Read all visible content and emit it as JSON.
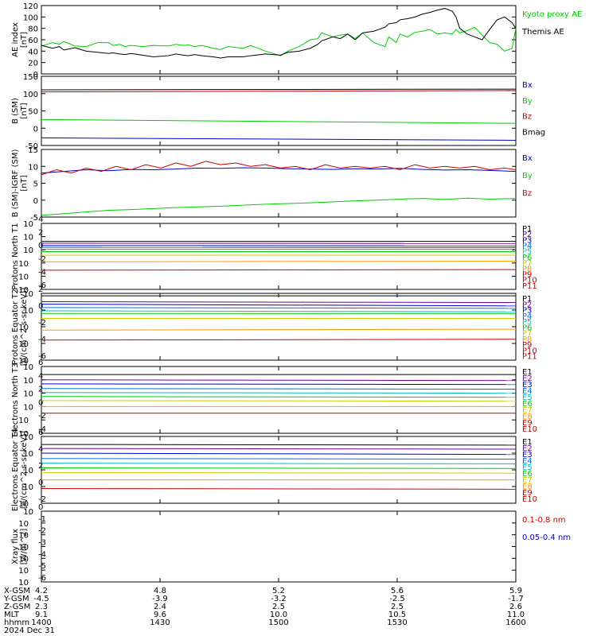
{
  "chart_data": [
    {
      "type": "line",
      "ylabel": "AE index",
      "yunit": "[nT]",
      "ylim": [
        0,
        120
      ],
      "yticks": [
        "0",
        "20",
        "40",
        "60",
        "80",
        "100",
        "120"
      ],
      "series": [
        {
          "name": "Kyoto proxy AE",
          "color": "#00cc00",
          "x": [
            0,
            15,
            24,
            30,
            45,
            60,
            75,
            90,
            96,
            105,
            112,
            120,
            135,
            150,
            170,
            180,
            190,
            197,
            205,
            215,
            230,
            240,
            250,
            270,
            280,
            300,
            320,
            330,
            345,
            360,
            370,
            375,
            390,
            400,
            410,
            420,
            430,
            445,
            460,
            465,
            475,
            480,
            490,
            500,
            510,
            520,
            530,
            540,
            550,
            555,
            560,
            570,
            580,
            590,
            600,
            610,
            620,
            630,
            635
          ],
          "y": [
            49,
            55,
            52,
            57,
            49,
            48,
            55,
            55,
            50,
            52,
            48,
            50,
            48,
            50,
            49,
            52,
            50,
            51,
            48,
            50,
            45,
            43,
            48,
            45,
            50,
            40,
            32,
            40,
            48,
            60,
            62,
            72,
            65,
            68,
            70,
            62,
            72,
            55,
            48,
            65,
            55,
            70,
            65,
            73,
            75,
            78,
            70,
            72,
            70,
            78,
            72,
            76,
            82,
            68,
            55,
            52,
            40,
            45,
            80
          ]
        },
        {
          "name": "Themis AE",
          "color": "#000000",
          "x": [
            0,
            15,
            24,
            30,
            45,
            60,
            75,
            90,
            96,
            105,
            112,
            120,
            135,
            150,
            170,
            180,
            190,
            197,
            205,
            215,
            230,
            240,
            250,
            270,
            280,
            300,
            320,
            330,
            345,
            360,
            370,
            375,
            390,
            400,
            410,
            420,
            430,
            445,
            460,
            465,
            475,
            480,
            490,
            500,
            510,
            520,
            530,
            540,
            550,
            555,
            560,
            570,
            580,
            590,
            600,
            610,
            620,
            630,
            635
          ],
          "y": [
            50,
            45,
            48,
            42,
            46,
            40,
            38,
            36,
            37,
            35,
            34,
            36,
            33,
            30,
            32,
            35,
            33,
            32,
            34,
            32,
            30,
            28,
            30,
            30,
            32,
            35,
            33,
            38,
            40,
            45,
            52,
            58,
            65,
            62,
            70,
            60,
            72,
            75,
            82,
            88,
            90,
            95,
            97,
            100,
            105,
            108,
            112,
            115,
            110,
            100,
            80,
            70,
            65,
            60,
            78,
            95,
            100,
            90,
            80
          ]
        }
      ]
    },
    {
      "type": "line",
      "ylabel": "B (SM)",
      "yunit": "[nT]",
      "ylim": [
        -50,
        150
      ],
      "yticks": [
        "-50",
        "0",
        "50",
        "100",
        "150"
      ],
      "series": [
        {
          "name": "Bx",
          "color": "#0000cc",
          "x": [
            0,
            635
          ],
          "y": [
            -28,
            -35
          ]
        },
        {
          "name": "By",
          "color": "#00cc00",
          "x": [
            0,
            635
          ],
          "y": [
            25,
            14
          ]
        },
        {
          "name": "Bz",
          "color": "#cc0000",
          "x": [
            0,
            635
          ],
          "y": [
            105,
            109
          ]
        },
        {
          "name": "Bmag",
          "color": "#000000",
          "x": [
            0,
            635
          ],
          "y": [
            111,
            113
          ]
        }
      ]
    },
    {
      "type": "line",
      "ylabel": "B (SM)-IGRF (SM)",
      "yunit": "[nT]",
      "ylim": [
        -5,
        15
      ],
      "yticks": [
        "-5",
        "0",
        "5",
        "10",
        "15"
      ],
      "series": [
        {
          "name": "Bx",
          "color": "#0000cc",
          "x": [
            0,
            30,
            60,
            90,
            120,
            150,
            180,
            210,
            240,
            270,
            300,
            330,
            360,
            390,
            420,
            450,
            480,
            510,
            540,
            570,
            600,
            635
          ],
          "y": [
            8,
            8.5,
            9,
            8.7,
            9.1,
            9,
            9.2,
            9.5,
            9.4,
            9.6,
            9.5,
            9.3,
            9.2,
            9.1,
            9.3,
            9.2,
            9.4,
            9.1,
            8.9,
            9,
            8.8,
            8.5
          ]
        },
        {
          "name": "By",
          "color": "#00cc00",
          "x": [
            0,
            30,
            60,
            90,
            120,
            150,
            180,
            210,
            240,
            270,
            300,
            330,
            360,
            390,
            420,
            450,
            480,
            510,
            540,
            570,
            600,
            635
          ],
          "y": [
            -4.5,
            -4,
            -3.5,
            -3,
            -2.8,
            -2.5,
            -2.2,
            -2,
            -1.8,
            -1.5,
            -1.2,
            -1,
            -0.8,
            -0.5,
            -0.2,
            0,
            0.3,
            0.5,
            0.2,
            0.6,
            0.3,
            0.5
          ]
        },
        {
          "name": "Bz",
          "color": "#cc0000",
          "x": [
            0,
            20,
            40,
            60,
            80,
            100,
            120,
            140,
            160,
            180,
            200,
            220,
            240,
            260,
            280,
            300,
            320,
            340,
            360,
            380,
            400,
            420,
            440,
            460,
            480,
            500,
            520,
            540,
            560,
            580,
            600,
            620,
            635
          ],
          "y": [
            7.5,
            9,
            8,
            9.5,
            8.5,
            10,
            9,
            10.5,
            9.5,
            11,
            10,
            11.5,
            10.5,
            11,
            10,
            10.5,
            9.5,
            10,
            9,
            10.5,
            9.5,
            10,
            9.5,
            10,
            9,
            10.5,
            9.5,
            10,
            9.5,
            10,
            9,
            9.5,
            9
          ]
        }
      ]
    },
    {
      "type": "line",
      "ylabel": "Protons North T1",
      "yticks": [
        "10^-6",
        "10^-4",
        "10^-2",
        "10^0",
        "10^2",
        "10^4"
      ],
      "ylim_log": [
        -7,
        4
      ],
      "series": [
        {
          "name": "P1",
          "color": "#000000",
          "level": [
            1.0,
            1.0
          ]
        },
        {
          "name": "P2",
          "color": "#7000a0",
          "level": [
            0.7,
            0.65
          ]
        },
        {
          "name": "P3",
          "color": "#0000cc",
          "level": [
            0.3,
            0.25
          ]
        },
        {
          "name": "P4",
          "color": "#0070dd",
          "level": [
            0.0,
            -0.05
          ]
        },
        {
          "name": "P5",
          "color": "#00bbcc",
          "level": [
            -0.3,
            -0.3
          ]
        },
        {
          "name": "P6",
          "color": "#00cc00",
          "level": [
            -0.7,
            -0.7
          ]
        },
        {
          "name": "P7",
          "color": "#cccc00",
          "level": [
            -1.3,
            -1.3
          ]
        },
        {
          "name": "P8",
          "color": "#ff9900",
          "level": [
            -2.4,
            -2.3
          ]
        },
        {
          "name": "P9",
          "color": "#cc0000",
          "level": [
            -3.8,
            -3.7
          ]
        },
        {
          "name": "P10",
          "color": "#cc0000",
          "level": []
        },
        {
          "name": "P11",
          "color": "#cc0000",
          "level": []
        }
      ]
    },
    {
      "type": "line",
      "ylabel": "Protons Equator T2",
      "yunit": "[p/(cm^2-s-sr-keV)]",
      "yticks": [
        "10^-6",
        "10^-4",
        "10^-2",
        "10^0",
        "10^2"
      ],
      "ylim_log": [
        -6,
        2
      ],
      "series": [
        {
          "name": "P1",
          "color": "#000000",
          "level": [
            1.7,
            1.7
          ]
        },
        {
          "name": "P2",
          "color": "#7000a0",
          "level": [
            1.0,
            0.9
          ]
        },
        {
          "name": "P3",
          "color": "#0000cc",
          "level": [
            0.7,
            0.5
          ]
        },
        {
          "name": "P4",
          "color": "#0070dd",
          "level": [
            0.3,
            0.2
          ]
        },
        {
          "name": "P5",
          "color": "#00bbcc",
          "level": [
            -0.1,
            -0.2
          ]
        },
        {
          "name": "P6",
          "color": "#00cc00",
          "level": [
            -0.4,
            -0.4
          ]
        },
        {
          "name": "P7",
          "color": "#cccc00",
          "level": [
            -1.0,
            -1.0
          ]
        },
        {
          "name": "P8",
          "color": "#ff9900",
          "level": [
            -2.4,
            -2.3
          ]
        },
        {
          "name": "P9",
          "color": "#cc0000",
          "level": [
            -3.6,
            -3.5
          ]
        },
        {
          "name": "P10",
          "color": "#cc0000",
          "level": []
        },
        {
          "name": "P11",
          "color": "#cc0000",
          "level": []
        }
      ]
    },
    {
      "type": "line",
      "ylabel": "Electrons North T3",
      "yticks": [
        "10^-4",
        "10^-2",
        "10^0",
        "10^2",
        "10^4",
        "10^6"
      ],
      "ylim_log": [
        -4,
        6
      ],
      "series": [
        {
          "name": "E1",
          "color": "#000000",
          "level": [
            4.8,
            4.8
          ]
        },
        {
          "name": "E2",
          "color": "#7000a0",
          "level": [
            4.0,
            3.9
          ]
        },
        {
          "name": "E3",
          "color": "#0000cc",
          "level": [
            3.4,
            3.3
          ]
        },
        {
          "name": "E4",
          "color": "#0070dd",
          "level": [
            2.7,
            2.6
          ]
        },
        {
          "name": "E5",
          "color": "#00bbcc",
          "level": [
            2.1,
            2.0
          ]
        },
        {
          "name": "E6",
          "color": "#00cc00",
          "level": [
            1.5,
            1.4
          ]
        },
        {
          "name": "E7",
          "color": "#cccc00",
          "level": [
            0.9,
            0.8
          ]
        },
        {
          "name": "E8",
          "color": "#ff9900",
          "level": [
            0.0,
            0.0
          ]
        },
        {
          "name": "E9",
          "color": "#cc0000",
          "level": [
            -1.0,
            -1.0
          ]
        },
        {
          "name": "E10",
          "color": "#cc0000",
          "level": []
        }
      ]
    },
    {
      "type": "line",
      "ylabel": "Electrons Equator T4",
      "yunit": "[e/(cm^2-s-sr-keV)]",
      "yticks": [
        "10^-2",
        "10^0",
        "10^2",
        "10^4",
        "10^6"
      ],
      "ylim_log": [
        -4,
        6
      ],
      "series": [
        {
          "name": "E1",
          "color": "#000000",
          "level": [
            4.8,
            4.7
          ]
        },
        {
          "name": "E2",
          "color": "#7000a0",
          "level": [
            4.2,
            4.1
          ]
        },
        {
          "name": "E3",
          "color": "#0000cc",
          "level": [
            3.5,
            3.3
          ]
        },
        {
          "name": "E4",
          "color": "#0070dd",
          "level": [
            2.7,
            2.6
          ]
        },
        {
          "name": "E5",
          "color": "#00bbcc",
          "level": [
            2.0,
            1.9
          ]
        },
        {
          "name": "E6",
          "color": "#00cc00",
          "level": [
            1.3,
            1.2
          ]
        },
        {
          "name": "E7",
          "color": "#cccc00",
          "level": [
            0.6,
            0.5
          ]
        },
        {
          "name": "E8",
          "color": "#ff9900",
          "level": [
            -0.5,
            -0.5
          ]
        },
        {
          "name": "E9",
          "color": "#cc0000",
          "level": [
            -1.8,
            -1.9
          ]
        },
        {
          "name": "E10",
          "color": "#cc0000",
          "level": []
        }
      ]
    },
    {
      "type": "line",
      "ylabel": "Xray flux",
      "yunit": "[W/m^2]",
      "yticks": [
        "10^-6",
        "10^-5",
        "10^-4",
        "10^-3",
        "10^-2",
        "10^-1",
        "10^0"
      ],
      "ylim_log": [
        -7,
        0
      ],
      "series": [
        {
          "name": "0.1-0.8 nm",
          "color": "#cc0000",
          "values": []
        },
        {
          "name": "0.05-0.4 nm",
          "color": "#0000cc",
          "values": []
        }
      ]
    }
  ],
  "ephemeris": {
    "rows": [
      {
        "label": "X-GSM",
        "values": [
          "4.2",
          "4.8",
          "5.2",
          "5.6",
          "5.9"
        ]
      },
      {
        "label": "Y-GSM",
        "values": [
          "-4.5",
          "-3.9",
          "-3.2",
          "-2.5",
          "-1.7"
        ]
      },
      {
        "label": "Z-GSM",
        "values": [
          "2.3",
          "2.4",
          "2.5",
          "2.5",
          "2.6"
        ]
      },
      {
        "label": "MLT",
        "values": [
          "9.1",
          "9.6",
          "10.0",
          "10.5",
          "11.0"
        ]
      },
      {
        "label": "hhmm",
        "values": [
          "1400",
          "1430",
          "1500",
          "1530",
          "1600"
        ]
      }
    ],
    "date": "2024 Dec 31"
  }
}
